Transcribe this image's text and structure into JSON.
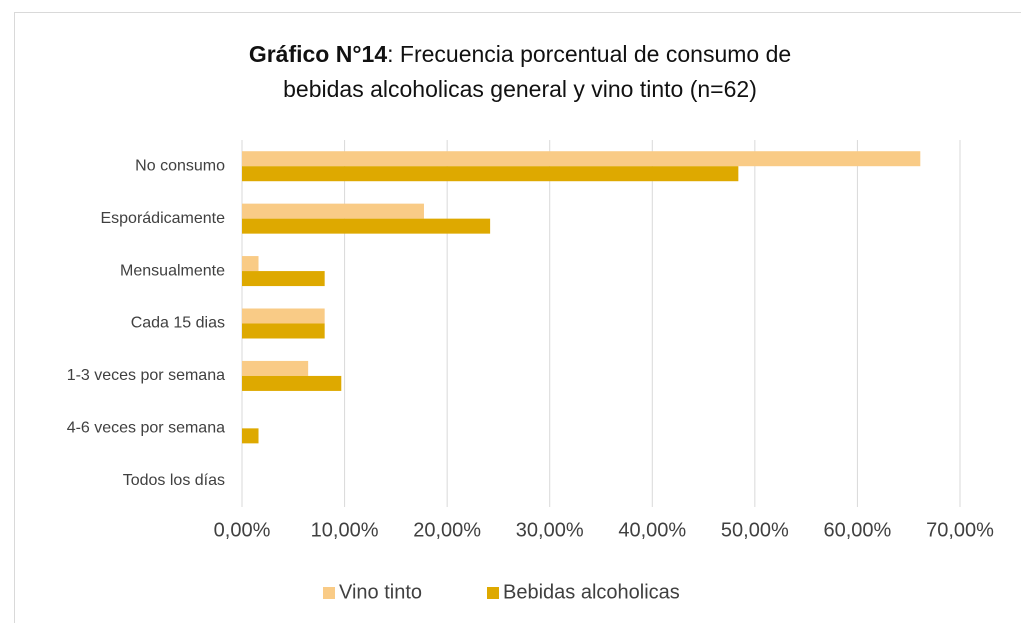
{
  "chart_data": {
    "type": "bar",
    "orientation": "horizontal",
    "title": {
      "bold": "Gráfico N°14",
      "lines": [
        ": Frecuencia porcentual de consumo de",
        "bebidas alcoholicas general y vino tinto (n=62)"
      ]
    },
    "categories": [
      "No consumo",
      "Esporádicamente",
      "Mensualmente",
      "Cada 15 dias",
      "1-3 veces por semana",
      "4-6 veces por semana",
      "Todos los días"
    ],
    "series": [
      {
        "name": "Vino tinto",
        "color": "#f9cb86",
        "values": [
          66.13,
          17.74,
          1.61,
          8.06,
          6.45,
          0,
          0
        ]
      },
      {
        "name": "Bebidas alcoholicas",
        "color": "#dea900",
        "values": [
          48.39,
          24.19,
          8.06,
          8.06,
          9.68,
          1.61,
          0
        ]
      }
    ],
    "xlim": [
      0,
      70
    ],
    "xticks": [
      {
        "value": 0,
        "label": "0,00%"
      },
      {
        "value": 10,
        "label": "10,00%"
      },
      {
        "value": 20,
        "label": "20,00%"
      },
      {
        "value": 30,
        "label": "30,00%"
      },
      {
        "value": 40,
        "label": "40,00%"
      },
      {
        "value": 50,
        "label": "50,00%"
      },
      {
        "value": 60,
        "label": "60,00%"
      },
      {
        "value": 70,
        "label": "70,00%"
      }
    ],
    "grid": true,
    "legend": "bottom"
  }
}
